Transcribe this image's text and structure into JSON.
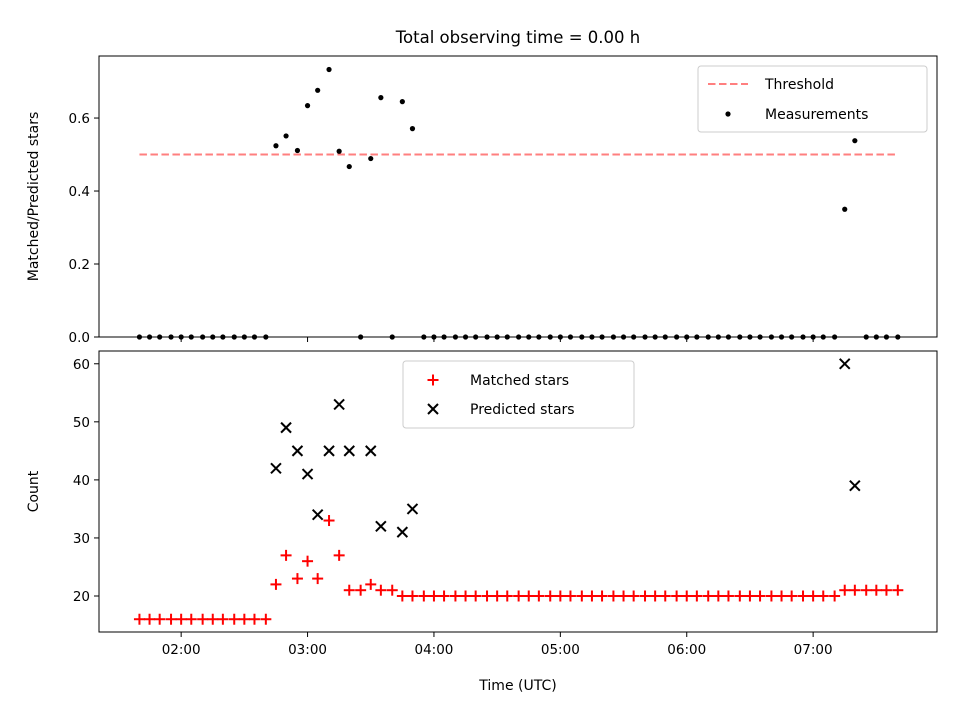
{
  "title": "Total observing time = 0.00 h",
  "colors": {
    "threshold": "#ff7f7f",
    "measurements": "#000000",
    "matched": "#ff0000",
    "predicted": "#000000"
  },
  "chart_data": [
    {
      "type": "scatter",
      "ylabel": "Matched/Predicted stars",
      "xlim": [
        1.35,
        7.98
      ],
      "ylim": [
        0,
        0.77
      ],
      "yticks": [
        0,
        0.2,
        0.4,
        0.6
      ],
      "ytick_labels": [
        "0.0",
        "0.2",
        "0.4",
        "0.6"
      ],
      "grid": false,
      "legend": {
        "position": "top-right",
        "entries": [
          "Threshold",
          "Measurements"
        ]
      },
      "threshold": {
        "name": "Threshold",
        "style": "dashed",
        "x": [
          1.67,
          7.67
        ],
        "y": 0.5
      },
      "series": [
        {
          "name": "Measurements",
          "marker": "dot",
          "points": [
            [
              1.67,
              0
            ],
            [
              1.75,
              0
            ],
            [
              1.83,
              0
            ],
            [
              1.92,
              0
            ],
            [
              2.0,
              0
            ],
            [
              2.08,
              0
            ],
            [
              2.17,
              0
            ],
            [
              2.25,
              0
            ],
            [
              2.33,
              0
            ],
            [
              2.42,
              0
            ],
            [
              2.5,
              0
            ],
            [
              2.58,
              0
            ],
            [
              2.67,
              0
            ],
            [
              2.75,
              0.524
            ],
            [
              2.83,
              0.551
            ],
            [
              2.92,
              0.511
            ],
            [
              3.0,
              0.634
            ],
            [
              3.08,
              0.676
            ],
            [
              3.17,
              0.733
            ],
            [
              3.25,
              0.509
            ],
            [
              3.33,
              0.467
            ],
            [
              3.42,
              0
            ],
            [
              3.5,
              0.489
            ],
            [
              3.58,
              0.656
            ],
            [
              3.67,
              0
            ],
            [
              3.75,
              0.645
            ],
            [
              3.83,
              0.571
            ],
            [
              3.92,
              0
            ],
            [
              4.0,
              0
            ],
            [
              4.08,
              0
            ],
            [
              4.17,
              0
            ],
            [
              4.25,
              0
            ],
            [
              4.33,
              0
            ],
            [
              4.42,
              0
            ],
            [
              4.5,
              0
            ],
            [
              4.58,
              0
            ],
            [
              4.67,
              0
            ],
            [
              4.75,
              0
            ],
            [
              4.83,
              0
            ],
            [
              4.92,
              0
            ],
            [
              5.0,
              0
            ],
            [
              5.08,
              0
            ],
            [
              5.17,
              0
            ],
            [
              5.25,
              0
            ],
            [
              5.33,
              0
            ],
            [
              5.42,
              0
            ],
            [
              5.5,
              0
            ],
            [
              5.58,
              0
            ],
            [
              5.67,
              0
            ],
            [
              5.75,
              0
            ],
            [
              5.83,
              0
            ],
            [
              5.92,
              0
            ],
            [
              6.0,
              0
            ],
            [
              6.08,
              0
            ],
            [
              6.17,
              0
            ],
            [
              6.25,
              0
            ],
            [
              6.33,
              0
            ],
            [
              6.42,
              0
            ],
            [
              6.5,
              0
            ],
            [
              6.58,
              0
            ],
            [
              6.67,
              0
            ],
            [
              6.75,
              0
            ],
            [
              6.83,
              0
            ],
            [
              6.92,
              0
            ],
            [
              7.0,
              0
            ],
            [
              7.08,
              0
            ],
            [
              7.17,
              0
            ],
            [
              7.25,
              0.35
            ],
            [
              7.33,
              0.538
            ],
            [
              7.42,
              0
            ],
            [
              7.5,
              0
            ],
            [
              7.58,
              0
            ],
            [
              7.67,
              0
            ]
          ]
        }
      ]
    },
    {
      "type": "scatter",
      "xlabel": "Time (UTC)",
      "ylabel": "Count",
      "xlim": [
        1.35,
        7.98
      ],
      "ylim": [
        13.8,
        62.2
      ],
      "xticks": [
        2,
        3,
        4,
        5,
        6,
        7
      ],
      "xtick_labels": [
        "02:00",
        "03:00",
        "04:00",
        "05:00",
        "06:00",
        "07:00"
      ],
      "yticks": [
        20,
        30,
        40,
        50,
        60
      ],
      "ytick_labels": [
        "20",
        "30",
        "40",
        "50",
        "60"
      ],
      "grid": false,
      "legend": {
        "position": "top-center",
        "entries": [
          "Matched stars",
          "Predicted stars"
        ]
      },
      "series": [
        {
          "name": "Matched stars",
          "marker": "plus",
          "points": [
            [
              1.67,
              16
            ],
            [
              1.75,
              16
            ],
            [
              1.83,
              16
            ],
            [
              1.92,
              16
            ],
            [
              2.0,
              16
            ],
            [
              2.08,
              16
            ],
            [
              2.17,
              16
            ],
            [
              2.25,
              16
            ],
            [
              2.33,
              16
            ],
            [
              2.42,
              16
            ],
            [
              2.5,
              16
            ],
            [
              2.58,
              16
            ],
            [
              2.67,
              16
            ],
            [
              2.75,
              22
            ],
            [
              2.83,
              27
            ],
            [
              2.92,
              23
            ],
            [
              3.0,
              26
            ],
            [
              3.08,
              23
            ],
            [
              3.17,
              33
            ],
            [
              3.25,
              27
            ],
            [
              3.33,
              21
            ],
            [
              3.42,
              21
            ],
            [
              3.5,
              22
            ],
            [
              3.58,
              21
            ],
            [
              3.67,
              21
            ],
            [
              3.75,
              20
            ],
            [
              3.83,
              20
            ],
            [
              3.92,
              20
            ],
            [
              4.0,
              20
            ],
            [
              4.08,
              20
            ],
            [
              4.17,
              20
            ],
            [
              4.25,
              20
            ],
            [
              4.33,
              20
            ],
            [
              4.42,
              20
            ],
            [
              4.5,
              20
            ],
            [
              4.58,
              20
            ],
            [
              4.67,
              20
            ],
            [
              4.75,
              20
            ],
            [
              4.83,
              20
            ],
            [
              4.92,
              20
            ],
            [
              5.0,
              20
            ],
            [
              5.08,
              20
            ],
            [
              5.17,
              20
            ],
            [
              5.25,
              20
            ],
            [
              5.33,
              20
            ],
            [
              5.42,
              20
            ],
            [
              5.5,
              20
            ],
            [
              5.58,
              20
            ],
            [
              5.67,
              20
            ],
            [
              5.75,
              20
            ],
            [
              5.83,
              20
            ],
            [
              5.92,
              20
            ],
            [
              6.0,
              20
            ],
            [
              6.08,
              20
            ],
            [
              6.17,
              20
            ],
            [
              6.25,
              20
            ],
            [
              6.33,
              20
            ],
            [
              6.42,
              20
            ],
            [
              6.5,
              20
            ],
            [
              6.58,
              20
            ],
            [
              6.67,
              20
            ],
            [
              6.75,
              20
            ],
            [
              6.83,
              20
            ],
            [
              6.92,
              20
            ],
            [
              7.0,
              20
            ],
            [
              7.08,
              20
            ],
            [
              7.17,
              20
            ],
            [
              7.25,
              21
            ],
            [
              7.33,
              21
            ],
            [
              7.42,
              21
            ],
            [
              7.5,
              21
            ],
            [
              7.58,
              21
            ],
            [
              7.67,
              21
            ]
          ]
        },
        {
          "name": "Predicted stars",
          "marker": "x",
          "points": [
            [
              2.75,
              42
            ],
            [
              2.83,
              49
            ],
            [
              2.92,
              45
            ],
            [
              3.0,
              41
            ],
            [
              3.08,
              34
            ],
            [
              3.17,
              45
            ],
            [
              3.25,
              53
            ],
            [
              3.33,
              45
            ],
            [
              3.5,
              45
            ],
            [
              3.58,
              32
            ],
            [
              3.75,
              31
            ],
            [
              3.83,
              35
            ],
            [
              7.25,
              60
            ],
            [
              7.33,
              39
            ]
          ]
        }
      ]
    }
  ]
}
